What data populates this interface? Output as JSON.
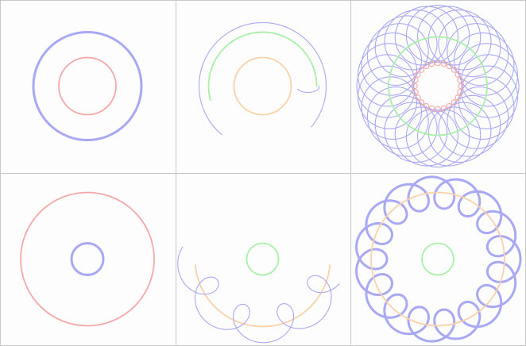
{
  "colors": {
    "background": "#fdfdfd",
    "grid_line": "#c8c8c8",
    "blue": "#a8a8f4",
    "red": "#f4a8a8",
    "green": "#a8f0a8",
    "orange": "#f8d2a8"
  },
  "panels": [
    {
      "name": "panel-1",
      "items": [
        {
          "kind": "circle",
          "color": "blue",
          "radius_ratio": 0.68,
          "weight": "thick"
        },
        {
          "kind": "circle",
          "color": "red",
          "radius_ratio": 0.36,
          "weight": "medium"
        }
      ]
    },
    {
      "name": "panel-2",
      "items": [
        {
          "kind": "arc",
          "color": "blue",
          "radius_ratio": 0.8,
          "start_deg": 130,
          "sweep_deg": 270,
          "weight": "thin"
        },
        {
          "kind": "arc",
          "color": "green",
          "radius_ratio": 0.68,
          "start_deg": 165,
          "sweep_deg": 195,
          "weight": "medium"
        },
        {
          "kind": "circle",
          "color": "orange",
          "radius_ratio": 0.36,
          "weight": "medium"
        },
        {
          "kind": "hook",
          "color": "blue",
          "weight": "thin"
        }
      ]
    },
    {
      "name": "panel-3",
      "items": [
        {
          "kind": "spirograph",
          "color": "blue",
          "loops": 29,
          "weight": "thin"
        },
        {
          "kind": "circle",
          "color": "green",
          "radius_ratio": 0.62,
          "weight": "medium"
        },
        {
          "kind": "bead-ring",
          "color": "red",
          "loops": 24,
          "weight": "thin"
        }
      ]
    },
    {
      "name": "panel-4",
      "items": [
        {
          "kind": "circle",
          "color": "red",
          "radius_ratio": 0.84,
          "weight": "medium"
        },
        {
          "kind": "circle",
          "color": "blue",
          "radius_ratio": 0.2,
          "weight": "thick"
        }
      ]
    },
    {
      "name": "panel-5",
      "items": [
        {
          "kind": "circle",
          "color": "green",
          "radius_ratio": 0.2,
          "weight": "medium"
        },
        {
          "kind": "arc",
          "color": "orange",
          "radius_ratio": 0.85,
          "start_deg": 5,
          "sweep_deg": 170,
          "weight": "medium"
        },
        {
          "kind": "loop-trail",
          "color": "blue",
          "loops": 4,
          "weight": "thin"
        }
      ]
    },
    {
      "name": "panel-6",
      "items": [
        {
          "kind": "epicycloid",
          "color": "blue",
          "loops": 16,
          "weight": "thick"
        },
        {
          "kind": "circle",
          "color": "orange",
          "radius_ratio": 0.84,
          "weight": "medium"
        },
        {
          "kind": "circle",
          "color": "green",
          "radius_ratio": 0.2,
          "weight": "medium"
        }
      ]
    }
  ]
}
